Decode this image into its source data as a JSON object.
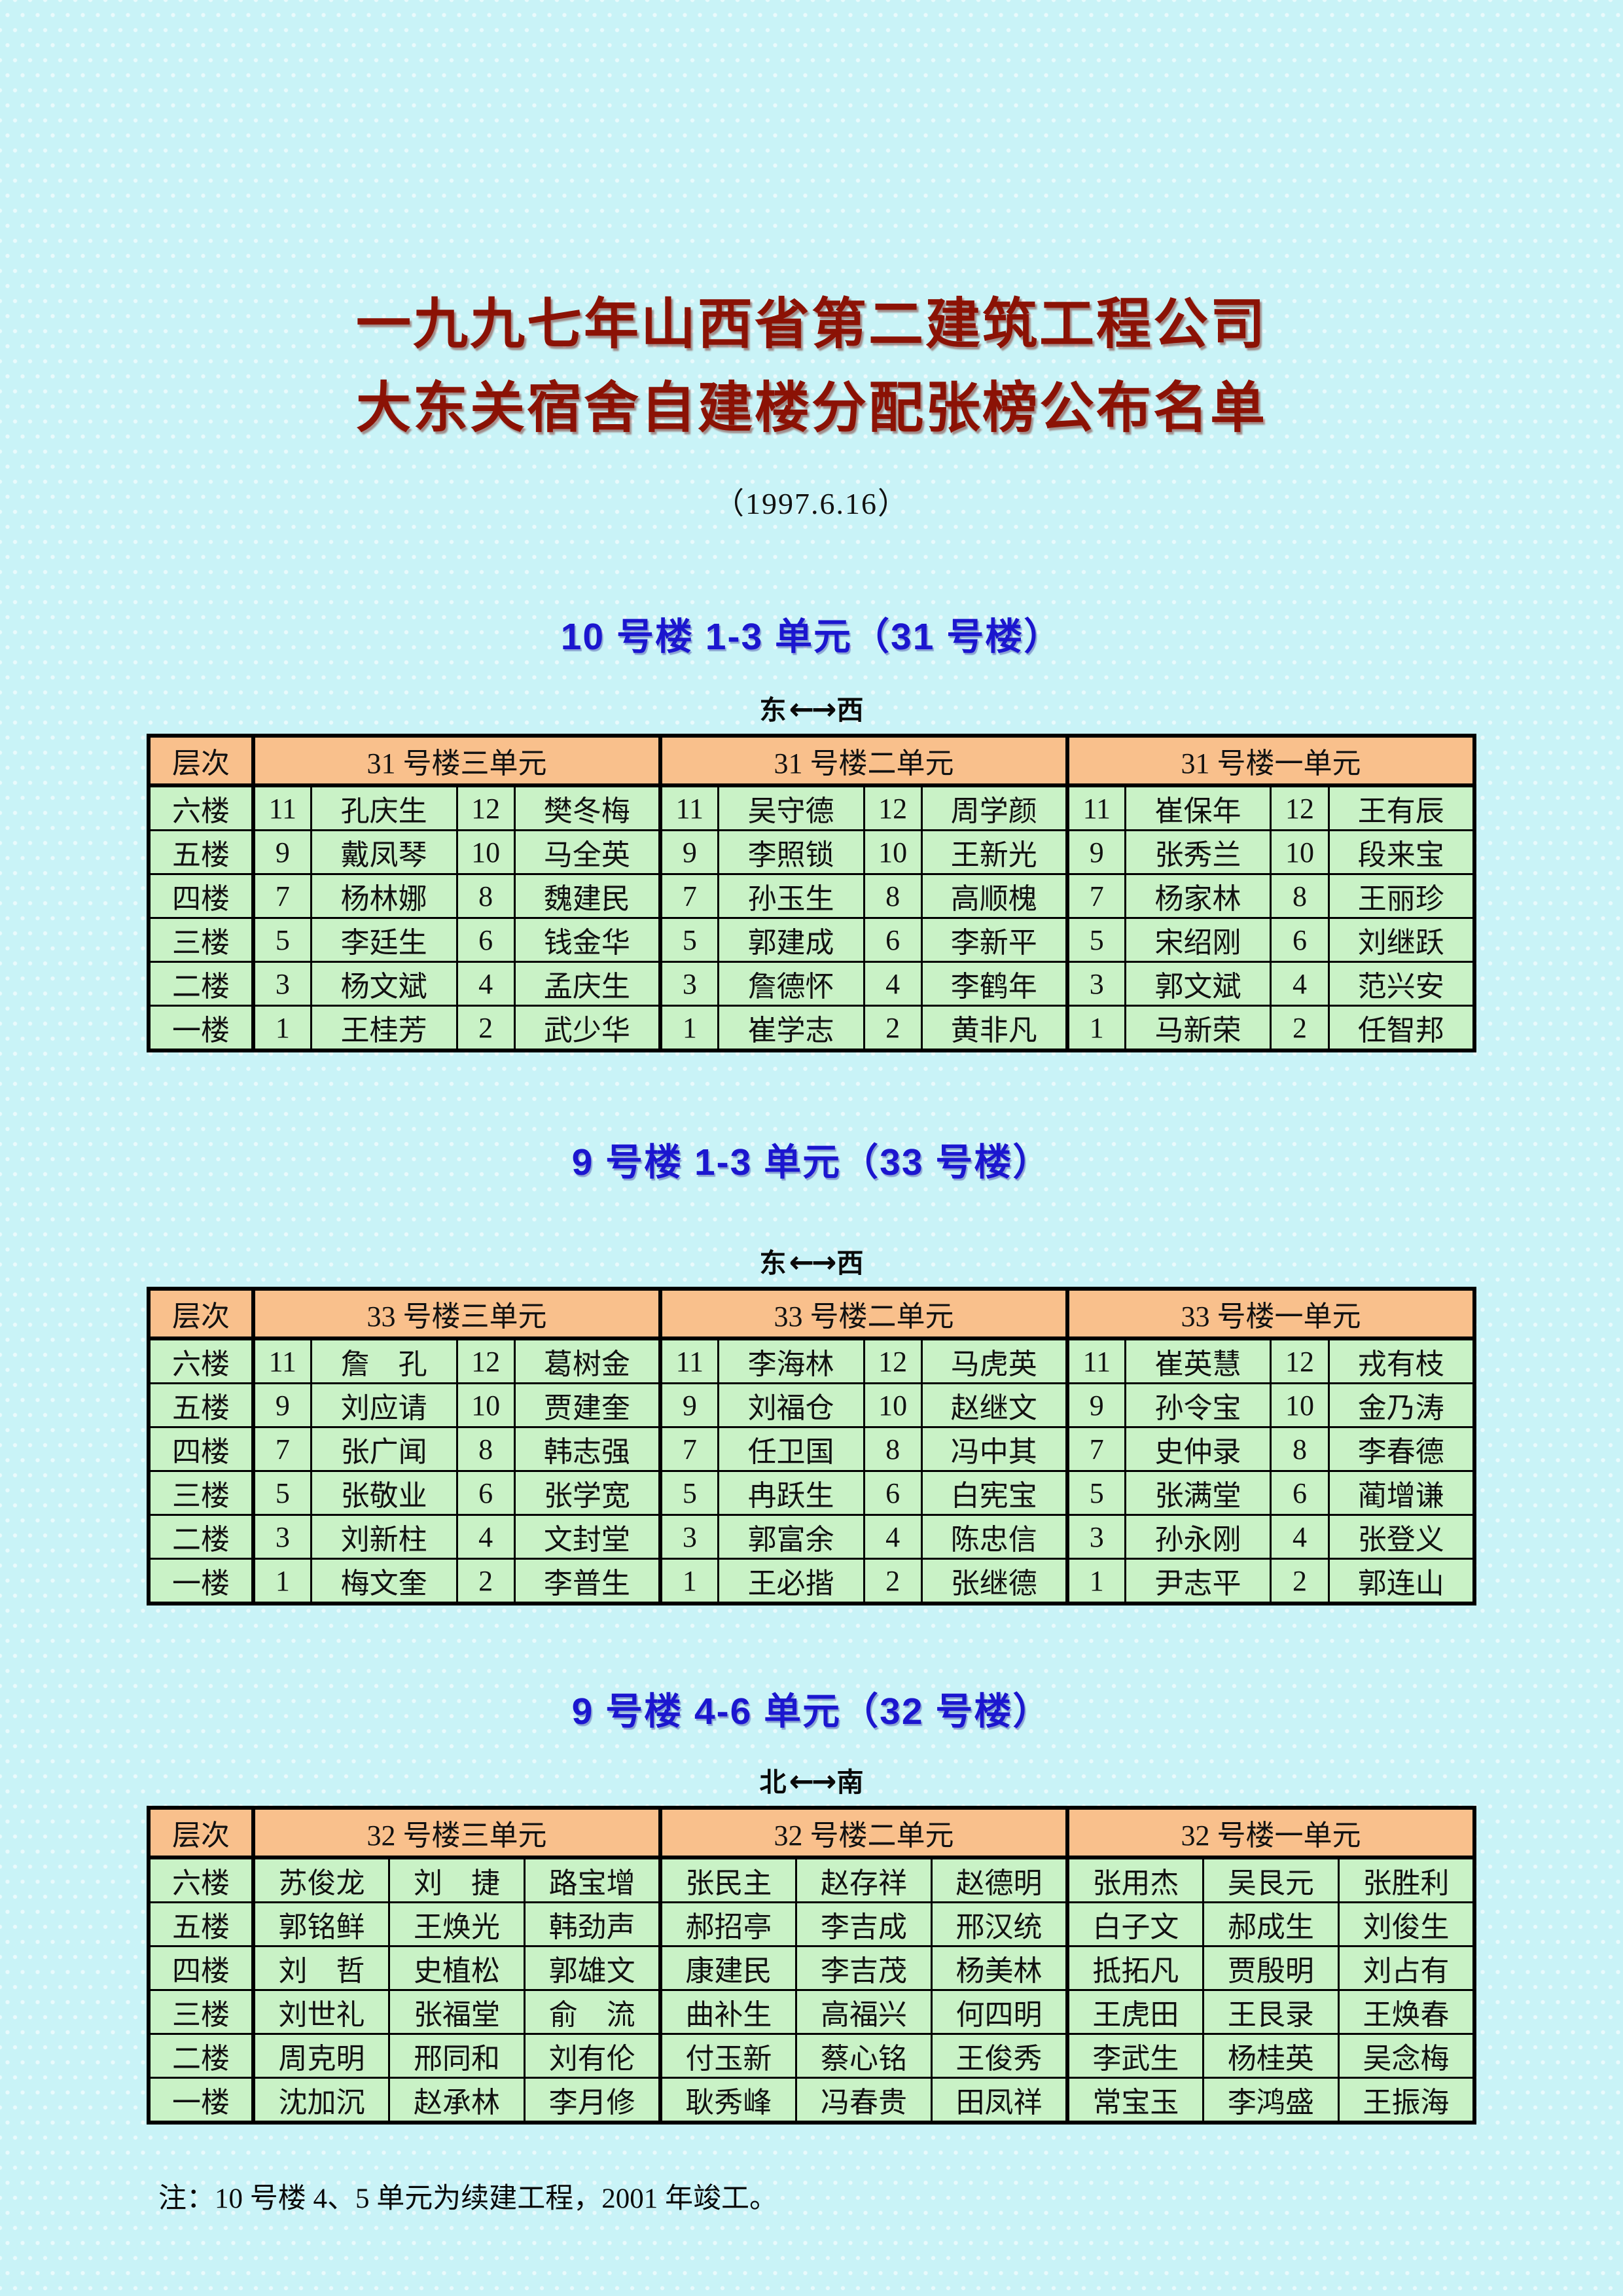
{
  "doc": {
    "title_line1": "一九九七年山西省第二建筑工程公司",
    "title_line2": "大东关宿舍自建楼分配张榜公布名单",
    "date": "（1997.6.16）",
    "note": "注：10 号楼 4、5 单元为续建工程，2001 年竣工。"
  },
  "colors": {
    "page_bg": "#c9f3f7",
    "title_red": "#8b1205",
    "heading_blue": "#1b16cf",
    "table_header_bg": "#f9c08c",
    "table_cell_bg": "#c9f2c6",
    "border_black": "#000000"
  },
  "sections": [
    {
      "heading": "10 号楼 1-3 单元（31 号楼）",
      "direction": {
        "left": "东",
        "arrow": "←→",
        "right": "西"
      },
      "columns": [
        "层次",
        "31 号楼三单元",
        "31 号楼二单元",
        "31 号楼一单元"
      ],
      "rows": [
        {
          "floor": "六楼",
          "cells": [
            "11",
            "孔庆生",
            "12",
            "樊冬梅",
            "11",
            "吴守德",
            "12",
            "周学颜",
            "11",
            "崔保年",
            "12",
            "王有辰"
          ]
        },
        {
          "floor": "五楼",
          "cells": [
            "9",
            "戴凤琴",
            "10",
            "马全英",
            "9",
            "李照锁",
            "10",
            "王新光",
            "9",
            "张秀兰",
            "10",
            "段来宝"
          ]
        },
        {
          "floor": "四楼",
          "cells": [
            "7",
            "杨林娜",
            "8",
            "魏建民",
            "7",
            "孙玉生",
            "8",
            "高顺槐",
            "7",
            "杨家林",
            "8",
            "王丽珍"
          ]
        },
        {
          "floor": "三楼",
          "cells": [
            "5",
            "李廷生",
            "6",
            "钱金华",
            "5",
            "郭建成",
            "6",
            "李新平",
            "5",
            "宋绍刚",
            "6",
            "刘继跃"
          ]
        },
        {
          "floor": "二楼",
          "cells": [
            "3",
            "杨文斌",
            "4",
            "孟庆生",
            "3",
            "詹德怀",
            "4",
            "李鹤年",
            "3",
            "郭文斌",
            "4",
            "范兴安"
          ]
        },
        {
          "floor": "一楼",
          "cells": [
            "1",
            "王桂芳",
            "2",
            "武少华",
            "1",
            "崔学志",
            "2",
            "黄非凡",
            "1",
            "马新荣",
            "2",
            "任智邦"
          ]
        }
      ]
    },
    {
      "heading": "9 号楼 1-3 单元（33 号楼）",
      "direction": {
        "left": "东",
        "arrow": "←→",
        "right": "西"
      },
      "columns": [
        "层次",
        "33 号楼三单元",
        "33 号楼二单元",
        "33 号楼一单元"
      ],
      "rows": [
        {
          "floor": "六楼",
          "cells": [
            "11",
            "詹　孔",
            "12",
            "葛树金",
            "11",
            "李海林",
            "12",
            "马虎英",
            "11",
            "崔英慧",
            "12",
            "戎有枝"
          ]
        },
        {
          "floor": "五楼",
          "cells": [
            "9",
            "刘应请",
            "10",
            "贾建奎",
            "9",
            "刘福仓",
            "10",
            "赵继文",
            "9",
            "孙令宝",
            "10",
            "金乃涛"
          ]
        },
        {
          "floor": "四楼",
          "cells": [
            "7",
            "张广闻",
            "8",
            "韩志强",
            "7",
            "任卫国",
            "8",
            "冯中其",
            "7",
            "史仲录",
            "8",
            "李春德"
          ]
        },
        {
          "floor": "三楼",
          "cells": [
            "5",
            "张敬业",
            "6",
            "张学宽",
            "5",
            "冉跃生",
            "6",
            "白宪宝",
            "5",
            "张满堂",
            "6",
            "蔺增谦"
          ]
        },
        {
          "floor": "二楼",
          "cells": [
            "3",
            "刘新柱",
            "4",
            "文封堂",
            "3",
            "郭富余",
            "4",
            "陈忠信",
            "3",
            "孙永刚",
            "4",
            "张登义"
          ]
        },
        {
          "floor": "一楼",
          "cells": [
            "1",
            "梅文奎",
            "2",
            "李普生",
            "1",
            "王必揩",
            "2",
            "张继德",
            "1",
            "尹志平",
            "2",
            "郭连山"
          ]
        }
      ]
    },
    {
      "heading": "9 号楼 4-6 单元（32 号楼）",
      "direction": {
        "left": "北",
        "arrow": "←→",
        "right": "南"
      },
      "columns": [
        "层次",
        "32 号楼三单元",
        "32 号楼二单元",
        "32 号楼一单元"
      ],
      "rows": [
        {
          "floor": "六楼",
          "cells": [
            "苏俊龙",
            "刘　捷",
            "路宝增",
            "张民主",
            "赵存祥",
            "赵德明",
            "张用杰",
            "吴艮元",
            "张胜利"
          ]
        },
        {
          "floor": "五楼",
          "cells": [
            "郭铭鲜",
            "王焕光",
            "韩劲声",
            "郝招亭",
            "李吉成",
            "邢汉统",
            "白子文",
            "郝成生",
            "刘俊生"
          ]
        },
        {
          "floor": "四楼",
          "cells": [
            "刘　哲",
            "史植松",
            "郭雄文",
            "康建民",
            "李吉茂",
            "杨美林",
            "抵拓凡",
            "贾殷明",
            "刘占有"
          ]
        },
        {
          "floor": "三楼",
          "cells": [
            "刘世礼",
            "张福堂",
            "俞　流",
            "曲补生",
            "高福兴",
            "何四明",
            "王虎田",
            "王艮录",
            "王焕春"
          ]
        },
        {
          "floor": "二楼",
          "cells": [
            "周克明",
            "邢同和",
            "刘有伦",
            "付玉新",
            "蔡心铭",
            "王俊秀",
            "李武生",
            "杨桂英",
            "吴念梅"
          ]
        },
        {
          "floor": "一楼",
          "cells": [
            "沈加沉",
            "赵承林",
            "李月修",
            "耿秀峰",
            "冯春贵",
            "田凤祥",
            "常宝玉",
            "李鸿盛",
            "王振海"
          ]
        }
      ]
    }
  ]
}
